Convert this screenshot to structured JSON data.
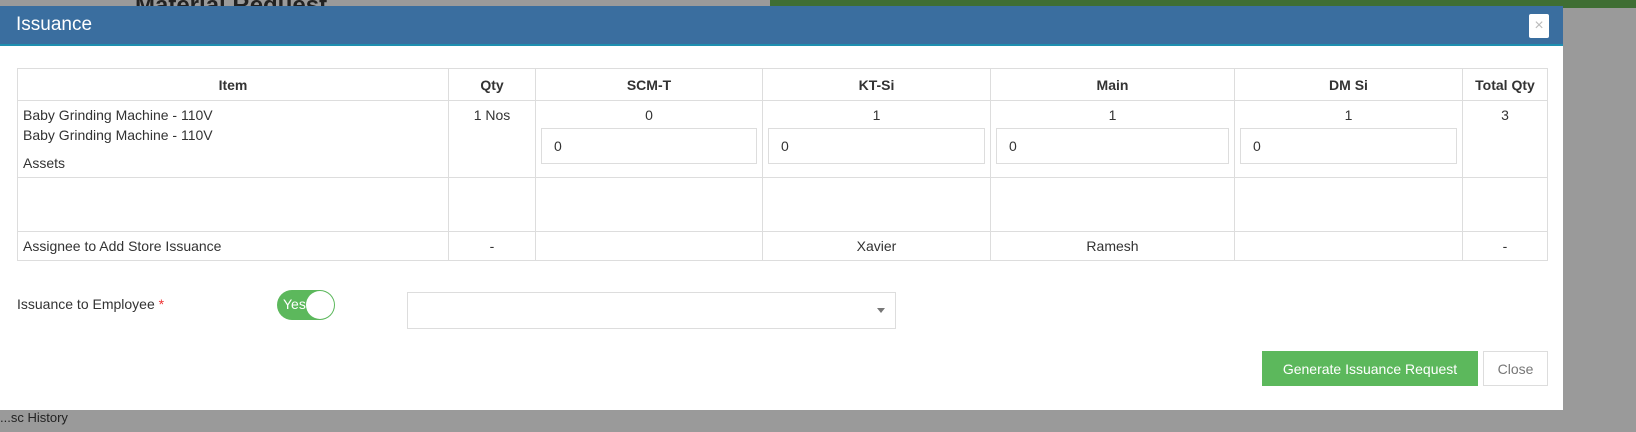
{
  "background": {
    "title": "Material Request",
    "footer": "...sc History"
  },
  "modal": {
    "title": "Issuance",
    "table": {
      "headers": [
        "Item",
        "Qty",
        "SCM-T",
        "KT-Si",
        "Main",
        "DM Si",
        "Total Qty"
      ],
      "item_lines": [
        "Baby Grinding Machine - 110V",
        "Baby Grinding Machine - 110V",
        "Assets"
      ],
      "qty": "1 Nos",
      "stores": [
        {
          "available": "0",
          "input": "0"
        },
        {
          "available": "1",
          "input": "0"
        },
        {
          "available": "1",
          "input": "0"
        },
        {
          "available": "1",
          "input": "0"
        }
      ],
      "total": "3",
      "assignee": {
        "label": "Assignee to Add Store Issuance",
        "qty": "-",
        "scm": "",
        "kt": "Xavier",
        "main": "Ramesh",
        "dm": "",
        "total": "-"
      }
    },
    "employee": {
      "label": "Issuance to Employee",
      "required": "*",
      "toggle": "Yes",
      "toggle_on": true,
      "select_value": ""
    },
    "buttons": {
      "generate": "Generate Issuance Request",
      "close": "Close"
    },
    "colors": {
      "header": "#3a6e9f",
      "success": "#5cb85c"
    }
  }
}
